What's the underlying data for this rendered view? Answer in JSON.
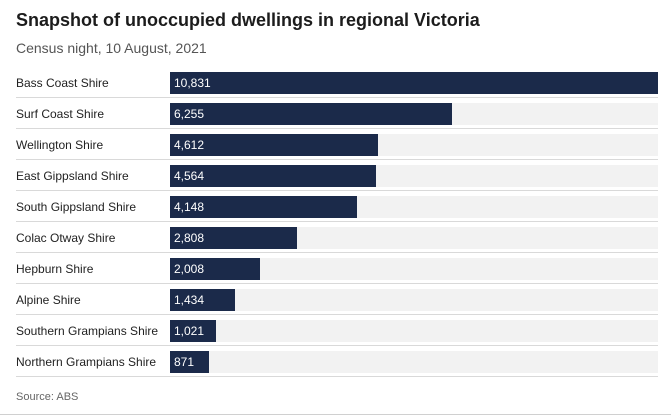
{
  "header": {
    "title": "Snapshot of unoccupied dwellings in regional Victoria",
    "subtitle": "Census night, 10 August, 2021"
  },
  "footer": {
    "source": "Source: ABS"
  },
  "colors": {
    "bar": "#1b2a4a",
    "track": "#f2f2f2",
    "value_text": "#ffffff"
  },
  "chart_data": {
    "type": "bar",
    "orientation": "horizontal",
    "title": "Snapshot of unoccupied dwellings in regional Victoria",
    "subtitle": "Census night, 10 August, 2021",
    "categories": [
      "Bass Coast Shire",
      "Surf Coast Shire",
      "Wellington Shire",
      "East Gippsland Shire",
      "South Gippsland Shire",
      "Colac Otway Shire",
      "Hepburn Shire",
      "Alpine Shire",
      "Southern Grampians Shire",
      "Northern Grampians Shire"
    ],
    "values": [
      10831,
      6255,
      4612,
      4564,
      4148,
      2808,
      2008,
      1434,
      1021,
      871
    ],
    "value_labels": [
      "10,831",
      "6,255",
      "4,612",
      "4,564",
      "4,148",
      "2,808",
      "2,008",
      "1,434",
      "1,021",
      "871"
    ],
    "xlim": [
      0,
      10831
    ],
    "grid": false,
    "legend": "none"
  }
}
